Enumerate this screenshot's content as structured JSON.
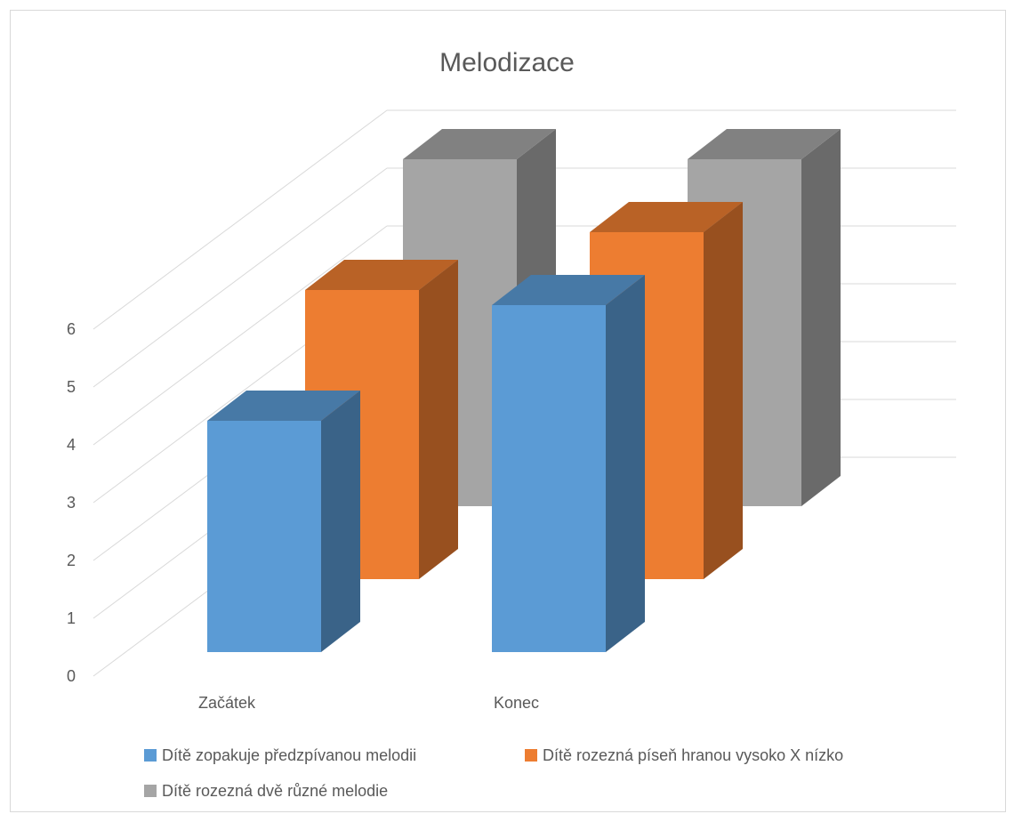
{
  "chart_data": {
    "type": "bar",
    "title": "Melodizace",
    "categories": [
      "Začátek",
      "Konec"
    ],
    "yticks": [
      0,
      1,
      2,
      3,
      4,
      5,
      6
    ],
    "ylim": [
      0,
      6
    ],
    "grid": true,
    "legend": "bottom",
    "series": [
      {
        "name": "Dítě zopakuje předzpívanou melodii",
        "color": "#5b9bd5",
        "values": [
          4,
          6
        ]
      },
      {
        "name": "Dítě rozezná píseň hranou vysoko X nízko",
        "color": "#ed7d31",
        "values": [
          5,
          6
        ]
      },
      {
        "name": "Dítě rozezná dvě různé melodie",
        "color": "#a5a5a5",
        "values": [
          6,
          6
        ]
      }
    ]
  }
}
